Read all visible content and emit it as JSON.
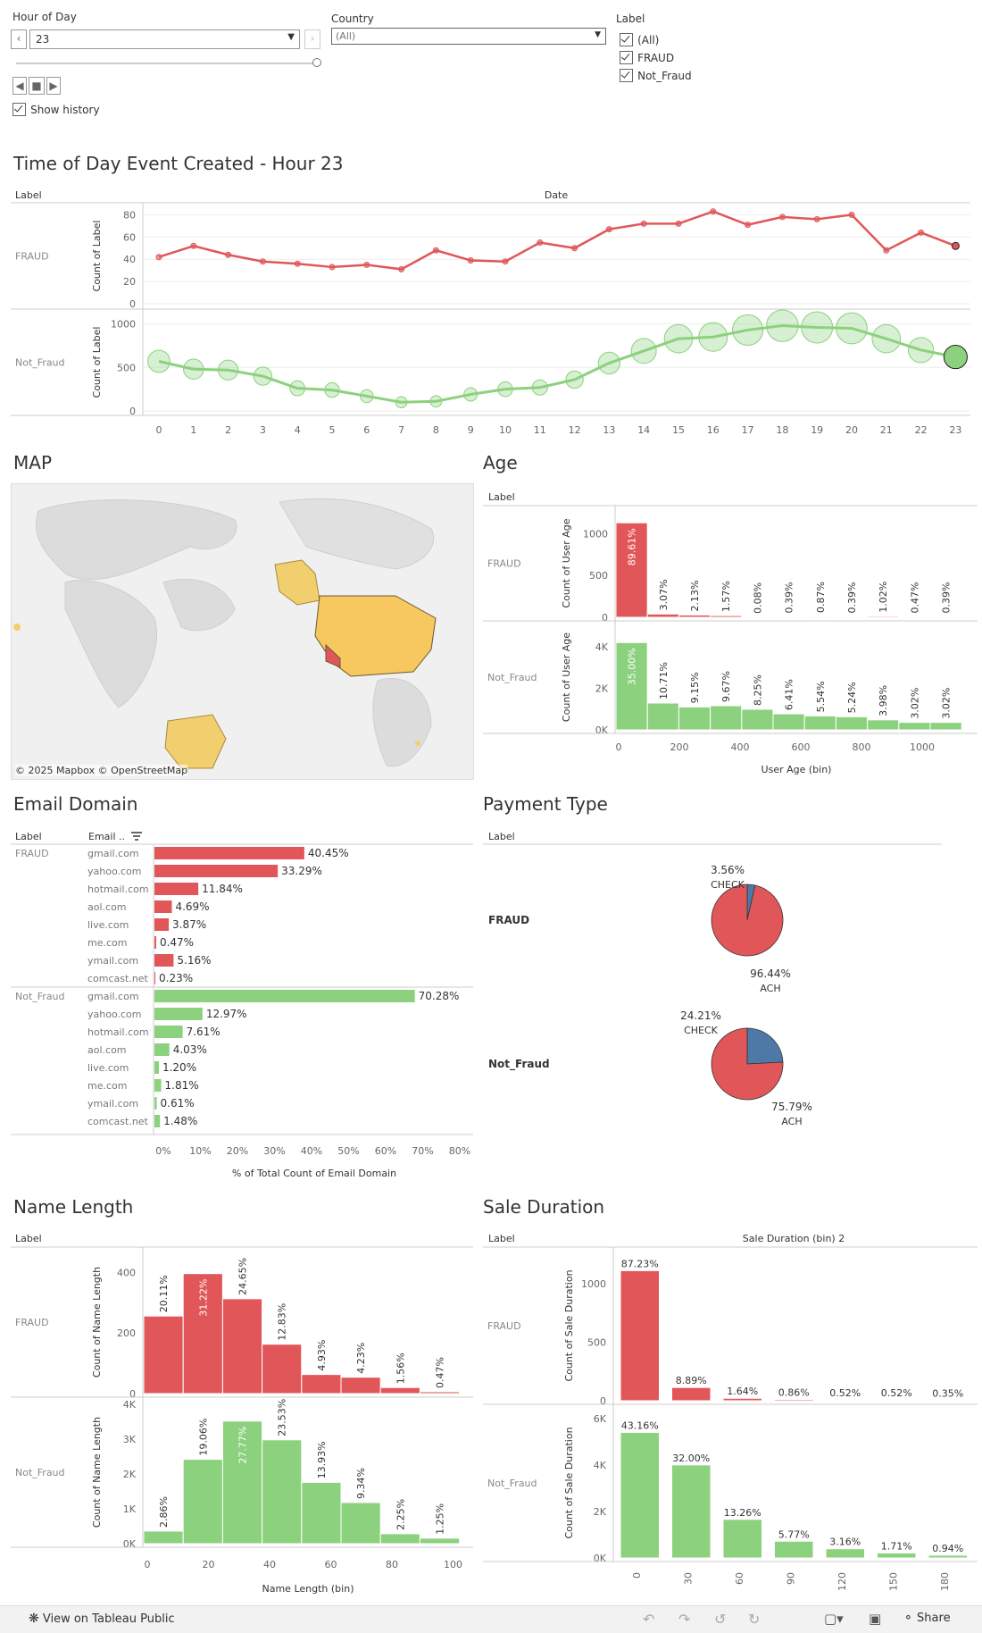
{
  "filters": {
    "hour": {
      "label": "Hour of Day",
      "value": "23"
    },
    "country": {
      "label": "Country",
      "value": "(All)"
    },
    "labelFilter": {
      "label": "Label",
      "options": [
        "(All)",
        "FRAUD",
        "Not_Fraud"
      ]
    },
    "show_history": "Show history"
  },
  "titles": {
    "time": "Time of Day Event Created - Hour 23",
    "map": "MAP",
    "age": "Age",
    "email": "Email Domain",
    "payment": "Payment Type",
    "name": "Name Length",
    "sale": "Sale Duration"
  },
  "map": {
    "attribution": "© 2025 Mapbox  © OpenStreetMap"
  },
  "footer": {
    "view": "View on Tableau Public",
    "share": "Share"
  },
  "colors": {
    "fraud": "#e15759",
    "notfraud": "#8cd17d",
    "blue": "#4e79a7"
  },
  "chart_data": [
    {
      "type": "line",
      "title": "Time of Day Event Created - Hour 23",
      "row_header": "Label",
      "col_header": "Date",
      "ylabel": "Count of Label",
      "x": [
        0,
        1,
        2,
        3,
        4,
        5,
        6,
        7,
        8,
        9,
        10,
        11,
        12,
        13,
        14,
        15,
        16,
        17,
        18,
        19,
        20,
        21,
        22,
        23
      ],
      "series": [
        {
          "name": "FRAUD",
          "ylim": [
            0,
            90
          ],
          "yticks": [
            0,
            20,
            40,
            60,
            80
          ],
          "values": [
            42,
            52,
            44,
            38,
            36,
            33,
            35,
            31,
            48,
            39,
            38,
            55,
            50,
            67,
            72,
            72,
            83,
            71,
            78,
            76,
            80,
            48,
            64,
            52
          ]
        },
        {
          "name": "Not_Fraud",
          "ylim": [
            0,
            1150
          ],
          "yticks": [
            0,
            500,
            1000
          ],
          "values": [
            570,
            480,
            470,
            400,
            260,
            240,
            170,
            100,
            110,
            190,
            250,
            270,
            360,
            550,
            690,
            830,
            850,
            930,
            980,
            960,
            950,
            830,
            700,
            620
          ]
        }
      ]
    },
    {
      "type": "bar",
      "title": "Age",
      "row_header": "Label",
      "ylabel": "Count of User Age",
      "xlabel": "User Age (bin)",
      "xticks": [
        "0",
        "200",
        "400",
        "600",
        "800",
        "1000"
      ],
      "series": [
        {
          "name": "FRAUD",
          "yticks": [
            "0",
            "500",
            "1000"
          ],
          "ymax": 1250,
          "values": [
            1130,
            39,
            27,
            20,
            1,
            5,
            11,
            5,
            13,
            6,
            5
          ],
          "labels": [
            "89.61%",
            "3.07%",
            "2.13%",
            "1.57%",
            "0.08%",
            "0.39%",
            "0.87%",
            "0.39%",
            "1.02%",
            "0.47%",
            "0.39%"
          ]
        },
        {
          "name": "Not_Fraud",
          "yticks": [
            "0K",
            "2K",
            "4K"
          ],
          "ymax": 4900,
          "values": [
            4200,
            1290,
            1100,
            1160,
            990,
            770,
            670,
            630,
            480,
            360,
            360
          ],
          "labels": [
            "35.00%",
            "10.71%",
            "9.15%",
            "9.67%",
            "8.25%",
            "6.41%",
            "5.54%",
            "5.24%",
            "3.98%",
            "3.02%",
            "3.02%"
          ]
        }
      ]
    },
    {
      "type": "bar",
      "title": "Email Domain",
      "row_header": "Label",
      "col_header": "Email ..",
      "xlabel": "% of Total Count of Email Domain",
      "xticks": [
        "0%",
        "10%",
        "20%",
        "30%",
        "40%",
        "50%",
        "60%",
        "70%",
        "80%"
      ],
      "series": [
        {
          "name": "FRAUD",
          "categories": [
            "gmail.com",
            "yahoo.com",
            "hotmail.com",
            "aol.com",
            "live.com",
            "me.com",
            "ymail.com",
            "comcast.net"
          ],
          "values": [
            40.45,
            33.29,
            11.84,
            4.69,
            3.87,
            0.47,
            5.16,
            0.23
          ],
          "labels": [
            "40.45%",
            "33.29%",
            "11.84%",
            "4.69%",
            "3.87%",
            "0.47%",
            "5.16%",
            "0.23%"
          ]
        },
        {
          "name": "Not_Fraud",
          "categories": [
            "gmail.com",
            "yahoo.com",
            "hotmail.com",
            "aol.com",
            "live.com",
            "me.com",
            "ymail.com",
            "comcast.net"
          ],
          "values": [
            70.28,
            12.97,
            7.61,
            4.03,
            1.2,
            1.81,
            0.61,
            1.48
          ],
          "labels": [
            "70.28%",
            "12.97%",
            "7.61%",
            "4.03%",
            "1.20%",
            "1.81%",
            "0.61%",
            "1.48%"
          ]
        }
      ]
    },
    {
      "type": "pie",
      "title": "Payment Type",
      "row_header": "Label",
      "series": [
        {
          "name": "FRAUD",
          "slices": [
            {
              "label": "CHECK",
              "value": 3.56,
              "text": "3.56%"
            },
            {
              "label": "ACH",
              "value": 96.44,
              "text": "96.44%"
            }
          ]
        },
        {
          "name": "Not_Fraud",
          "slices": [
            {
              "label": "CHECK",
              "value": 24.21,
              "text": "24.21%"
            },
            {
              "label": "ACH",
              "value": 75.79,
              "text": "75.79%"
            }
          ]
        }
      ]
    },
    {
      "type": "bar",
      "title": "Name Length",
      "row_header": "Label",
      "ylabel": "Count of Name Length",
      "xlabel": "Name Length (bin)",
      "xticks": [
        "0",
        "20",
        "40",
        "60",
        "80",
        "100"
      ],
      "series": [
        {
          "name": "FRAUD",
          "yticks": [
            "0",
            "200",
            "400"
          ],
          "ymax": 460,
          "values": [
            256,
            396,
            313,
            163,
            63,
            54,
            20,
            6
          ],
          "labels": [
            "20.11%",
            "31.22%",
            "24.65%",
            "12.83%",
            "4.93%",
            "4.23%",
            "1.56%",
            "0.47%"
          ]
        },
        {
          "name": "Not_Fraud",
          "yticks": [
            "0K",
            "1K",
            "2K",
            "3K",
            "4K"
          ],
          "ymax": 4000,
          "values": [
            360,
            2420,
            3520,
            2980,
            1760,
            1180,
            285,
            158
          ],
          "labels": [
            "2.86%",
            "19.06%",
            "27.77%",
            "23.53%",
            "13.93%",
            "9.34%",
            "2.25%",
            "1.25%"
          ]
        }
      ]
    },
    {
      "type": "bar",
      "title": "Sale Duration",
      "row_header": "Label",
      "col_header": "Sale Duration (bin) 2",
      "ylabel": "Count of Sale Duration",
      "xticks": [
        "0",
        "30",
        "60",
        "90",
        "120",
        "150",
        "180"
      ],
      "series": [
        {
          "name": "FRAUD",
          "yticks": [
            "0",
            "500",
            "1000"
          ],
          "ymax": 1250,
          "values": [
            1110,
            113,
            21,
            11,
            7,
            7,
            4
          ],
          "labels": [
            "87.23%",
            "8.89%",
            "1.64%",
            "0.86%",
            "0.52%",
            "0.52%",
            "0.35%"
          ]
        },
        {
          "name": "Not_Fraud",
          "yticks": [
            "0K",
            "2K",
            "4K",
            "6K"
          ],
          "ymax": 6300,
          "values": [
            5400,
            4000,
            1660,
            720,
            395,
            214,
            118
          ],
          "labels": [
            "43.16%",
            "32.00%",
            "13.26%",
            "5.77%",
            "3.16%",
            "1.71%",
            "0.94%"
          ]
        }
      ]
    }
  ]
}
